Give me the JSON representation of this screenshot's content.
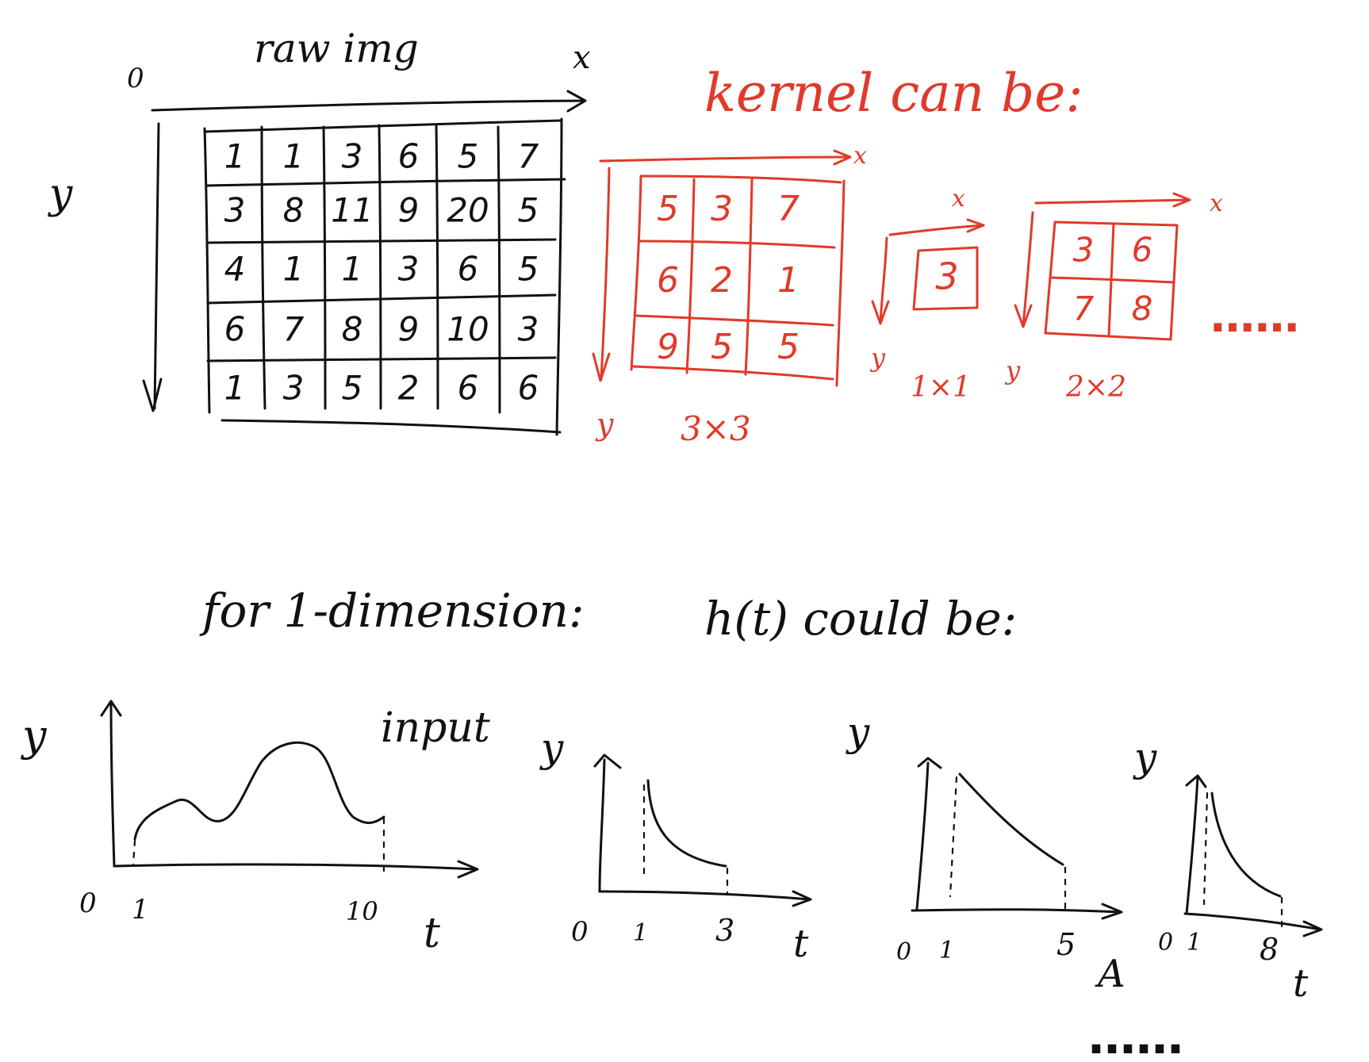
{
  "colors": {
    "ink": "#111111",
    "accent": "#e03a2a",
    "background": "#ffffff"
  },
  "raw_image": {
    "title": "raw img",
    "origin_label": "0",
    "x_axis_label": "x",
    "y_axis_label": "y",
    "grid": [
      [
        "1",
        "1",
        "3",
        "6",
        "5",
        "7"
      ],
      [
        "3",
        "8",
        "11",
        "9",
        "20",
        "5"
      ],
      [
        "4",
        "1",
        "1",
        "3",
        "6",
        "5"
      ],
      [
        "6",
        "7",
        "8",
        "9",
        "10",
        "3"
      ],
      [
        "1",
        "3",
        "5",
        "2",
        "6",
        "6"
      ]
    ]
  },
  "kernels": {
    "heading": "kernel can be:",
    "items": [
      {
        "size_label": "3×3",
        "x_label": "x",
        "y_label": "y",
        "grid": [
          [
            "5",
            "3",
            "7"
          ],
          [
            "6",
            "2",
            "1"
          ],
          [
            "9",
            "5",
            "5"
          ]
        ]
      },
      {
        "size_label": "1×1",
        "x_label": "x",
        "y_label": "y",
        "grid": [
          [
            "3"
          ]
        ]
      },
      {
        "size_label": "2×2",
        "x_label": "x",
        "y_label": "y",
        "grid": [
          [
            "3",
            "6"
          ],
          [
            "7",
            "8"
          ]
        ]
      }
    ],
    "ellipsis": "……"
  },
  "one_dimension": {
    "heading": "for 1-dimension:",
    "h_heading": "h(t) could be:",
    "input_plot": {
      "label": "input",
      "y_label": "y",
      "x_label": "t",
      "ticks": [
        "0",
        "1",
        "10"
      ]
    },
    "h_plots": [
      {
        "y_label": "y",
        "x_label": "t",
        "ticks": [
          "0",
          "1",
          "3"
        ]
      },
      {
        "y_label": "y",
        "x_label": "A",
        "ticks": [
          "0",
          "1",
          "5"
        ]
      },
      {
        "y_label": "y",
        "x_label": "t",
        "ticks": [
          "0",
          "1",
          "8"
        ]
      }
    ],
    "ellipsis": "……"
  }
}
